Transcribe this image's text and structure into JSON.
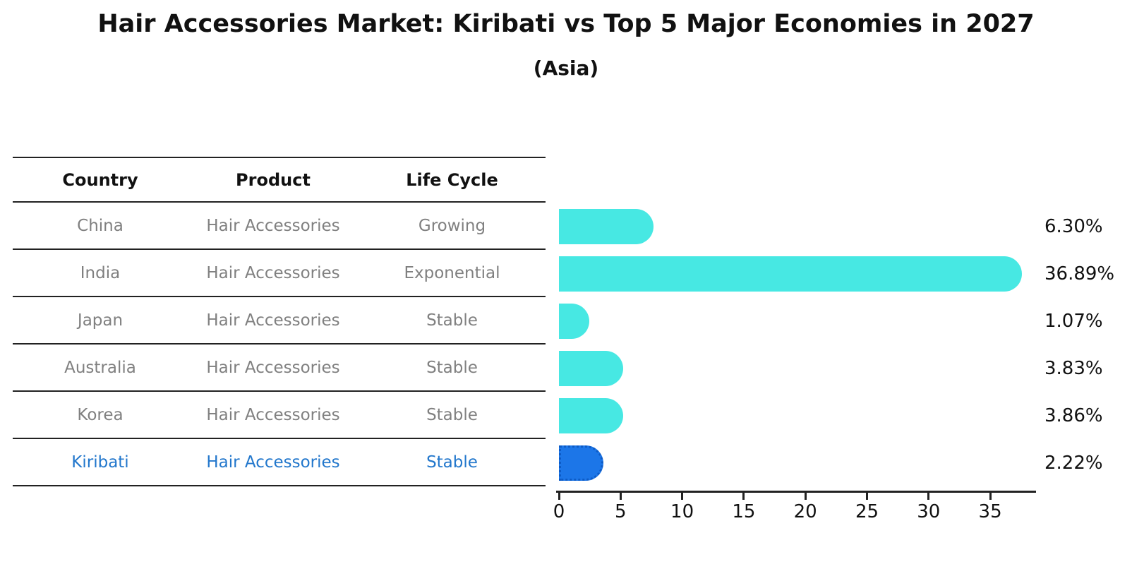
{
  "title": "Hair Accessories Market: Kiribati vs Top 5 Major Economies in 2027",
  "subtitle": "(Asia)",
  "table": {
    "headers": [
      "Country",
      "Product",
      "Life Cycle"
    ],
    "rows": [
      {
        "country": "China",
        "product": "Hair Accessories",
        "life_cycle": "Growing",
        "highlight": false
      },
      {
        "country": "India",
        "product": "Hair Accessories",
        "life_cycle": "Exponential",
        "highlight": false
      },
      {
        "country": "Japan",
        "product": "Hair Accessories",
        "life_cycle": "Stable",
        "highlight": false
      },
      {
        "country": "Australia",
        "product": "Hair Accessories",
        "life_cycle": "Stable",
        "highlight": false
      },
      {
        "country": "Korea",
        "product": "Hair Accessories",
        "life_cycle": "Stable",
        "highlight": false
      },
      {
        "country": "Kiribati",
        "product": "Hair Accessories",
        "life_cycle": "Stable",
        "highlight": true
      }
    ]
  },
  "chart_data": {
    "type": "bar",
    "orientation": "horizontal",
    "title": "Hair Accessories Market: Kiribati vs Top 5 Major Economies in 2027 (Asia)",
    "categories": [
      "China",
      "India",
      "Japan",
      "Australia",
      "Korea",
      "Kiribati"
    ],
    "values": [
      6.3,
      36.89,
      1.07,
      3.83,
      3.86,
      2.22
    ],
    "labels": [
      "6.30%",
      "36.89%",
      "1.07%",
      "3.83%",
      "3.86%",
      "2.22%"
    ],
    "x_ticks": [
      0,
      5,
      10,
      15,
      20,
      25,
      30,
      35
    ],
    "xlim": [
      0,
      38.7
    ],
    "grid": false,
    "legend": "none",
    "bar_color": "#47E8E3",
    "highlight_color": "#1C76E8",
    "highlight_index": 5,
    "highlight_style": "dotted-border",
    "value_label_color": "#111111"
  },
  "colors": {
    "highlight_text": "#2277CC",
    "table_text": "#808080",
    "header_text": "#111111",
    "axis": "#222222",
    "background": "#ffffff"
  }
}
